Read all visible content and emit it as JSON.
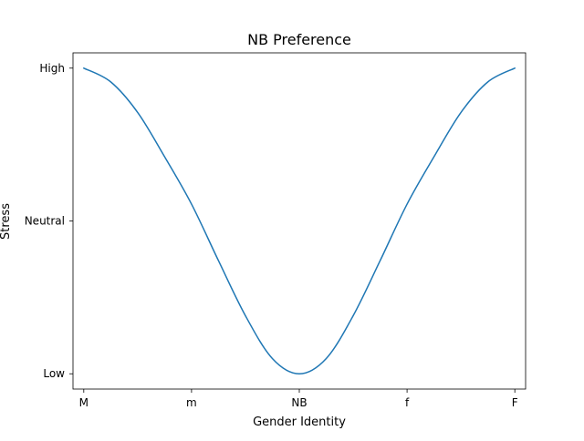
{
  "chart_data": {
    "type": "line",
    "title": "NB Preference",
    "xlabel": "Gender Identity",
    "ylabel": "Stress",
    "x_ticks": [
      "M",
      "m",
      "NB",
      "f",
      "F"
    ],
    "y_ticks": [
      "Low",
      "Neutral",
      "High"
    ],
    "xlim": [
      -0.1,
      4.1
    ],
    "ylim": [
      -0.1,
      2.1
    ],
    "grid": false,
    "series": [
      {
        "color": "#1f77b4",
        "x": [
          0,
          0.25,
          0.5,
          0.75,
          1,
          1.25,
          1.5,
          1.75,
          2,
          2.25,
          2.5,
          2.75,
          3,
          3.25,
          3.5,
          3.75,
          4
        ],
        "y": [
          2.0,
          1.91,
          1.71,
          1.42,
          1.11,
          0.74,
          0.38,
          0.1,
          0.0,
          0.1,
          0.38,
          0.74,
          1.11,
          1.42,
          1.71,
          1.91,
          2.0
        ]
      }
    ]
  }
}
